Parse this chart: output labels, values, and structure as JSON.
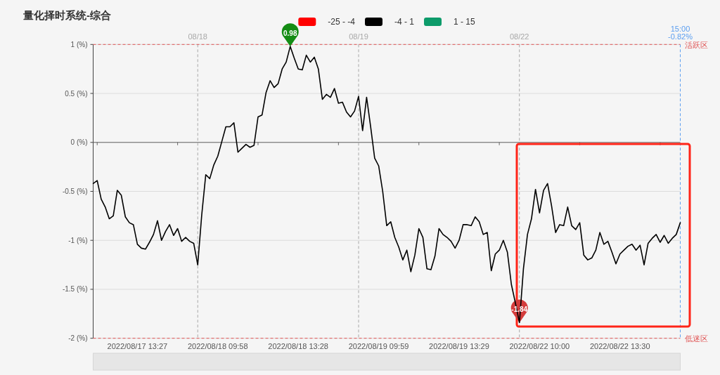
{
  "chart_data": {
    "type": "line",
    "title": "量化择时系统-综合",
    "categories": [
      null,
      null,
      null,
      null,
      null,
      null,
      null,
      null,
      null,
      null,
      null,
      "2022/08/17 13:27",
      null,
      null,
      null,
      null,
      null,
      null,
      null,
      null,
      null,
      null,
      null,
      null,
      null,
      null,
      null,
      null,
      null,
      null,
      null,
      "2022/08/18 09:58",
      null,
      null,
      null,
      null,
      null,
      null,
      null,
      null,
      null,
      null,
      null,
      null,
      null,
      null,
      null,
      null,
      null,
      null,
      null,
      "2022/08/18 13:28",
      null,
      null,
      null,
      null,
      null,
      null,
      null,
      null,
      null,
      null,
      null,
      null,
      null,
      null,
      null,
      null,
      null,
      null,
      null,
      "2022/08/19 09:59",
      null,
      null,
      null,
      null,
      null,
      null,
      null,
      null,
      null,
      null,
      null,
      null,
      null,
      null,
      null,
      null,
      null,
      null,
      null,
      "2022/08/19 13:29",
      null,
      null,
      null,
      null,
      null,
      null,
      null,
      null,
      null,
      null,
      null,
      null,
      null,
      null,
      null,
      null,
      null,
      null,
      null,
      "2022/08/22 10:00",
      null,
      null,
      null,
      null,
      null,
      null,
      null,
      null,
      null,
      null,
      null,
      null,
      null,
      null,
      null,
      null,
      null,
      null,
      null,
      "2022/08/22 13:30",
      null,
      null,
      null,
      null,
      null,
      null,
      null,
      null,
      null,
      null,
      null,
      null,
      null,
      null,
      null
    ],
    "ylim": [
      -2,
      1
    ],
    "yticks": [
      {
        "value": 1,
        "label": "1 (%)"
      },
      {
        "value": 0.5,
        "label": "0.5 (%)"
      },
      {
        "value": 0,
        "label": "0 (%)"
      },
      {
        "value": -0.5,
        "label": "-0.5 (%)"
      },
      {
        "value": -1,
        "label": "-1 (%)"
      },
      {
        "value": -1.5,
        "label": "-1.5 (%)"
      },
      {
        "value": -2,
        "label": "-2 (%)"
      }
    ],
    "grid": "y",
    "legend": "top",
    "series": [
      {
        "name": "-25 - -4",
        "color": "#ff0000",
        "values": [
          null,
          null,
          null,
          null,
          null,
          null,
          null,
          null,
          null,
          null,
          null,
          null,
          null,
          null,
          null,
          null,
          null,
          null,
          null,
          null,
          null,
          null,
          null,
          null,
          null,
          null,
          null,
          null,
          null,
          null,
          null,
          null,
          null,
          null,
          null,
          null,
          null,
          null,
          null,
          null,
          null,
          null,
          null,
          null,
          null,
          null,
          null,
          null,
          null,
          null,
          null,
          null,
          null,
          null,
          null,
          null,
          null,
          null,
          null,
          null,
          null,
          null,
          null,
          null,
          null,
          null,
          null,
          null,
          null,
          null,
          null,
          null,
          null,
          null,
          null,
          null,
          null,
          null,
          null,
          null,
          null,
          null,
          null,
          null,
          null,
          null,
          null,
          null,
          null,
          null,
          null,
          null,
          null,
          null,
          null,
          null,
          null,
          null,
          null,
          null,
          null,
          null,
          null,
          null,
          null,
          null,
          null,
          null,
          null,
          null,
          null,
          null,
          null,
          null,
          null,
          null,
          null,
          null,
          null,
          null,
          null,
          null,
          null,
          null,
          null,
          null,
          null,
          null,
          null,
          null,
          null,
          null,
          null,
          null,
          null,
          null,
          null,
          null,
          null,
          null,
          null,
          null,
          null,
          null,
          null,
          null,
          null
        ]
      },
      {
        "name": "-4 - 1",
        "color": "#000000",
        "values": [
          -0.42,
          -0.39,
          -0.58,
          -0.66,
          -0.78,
          -0.75,
          -0.49,
          -0.54,
          -0.76,
          -0.82,
          -0.84,
          -1.04,
          -1.08,
          -1.09,
          -1.02,
          -0.94,
          -0.8,
          -1.0,
          -0.91,
          -0.84,
          -0.95,
          -0.88,
          -1.01,
          -0.97,
          -1.01,
          -1.03,
          -1.25,
          -0.74,
          -0.33,
          -0.37,
          -0.23,
          -0.14,
          0.01,
          0.16,
          0.16,
          0.2,
          -0.1,
          -0.06,
          -0.02,
          -0.05,
          -0.03,
          0.26,
          0.28,
          0.51,
          0.63,
          0.56,
          0.6,
          0.75,
          0.82,
          0.98,
          0.86,
          0.75,
          0.74,
          0.89,
          0.82,
          0.87,
          0.75,
          0.44,
          0.49,
          0.46,
          0.55,
          0.4,
          0.41,
          0.31,
          0.26,
          0.32,
          0.47,
          0.12,
          0.46,
          0.16,
          -0.16,
          -0.24,
          -0.5,
          -0.85,
          -0.81,
          -0.97,
          -1.07,
          -1.2,
          -1.1,
          -1.32,
          -1.15,
          -0.88,
          -0.97,
          -1.29,
          -1.3,
          -1.16,
          -0.88,
          -0.94,
          -0.97,
          -1.01,
          -1.08,
          -1.0,
          -0.84,
          -0.84,
          -0.85,
          -0.76,
          -0.81,
          -0.94,
          -0.92,
          -1.31,
          -1.14,
          -1.1,
          -1.0,
          -1.12,
          -1.45,
          -1.64,
          -1.84,
          -1.29,
          -0.94,
          -0.78,
          -0.48,
          -0.72,
          -0.49,
          -0.42,
          -0.65,
          -0.92,
          -0.84,
          -0.85,
          -0.66,
          -0.85,
          -0.89,
          -0.82,
          -1.15,
          -1.2,
          -1.18,
          -1.1,
          -0.92,
          -1.04,
          -1.01,
          -1.12,
          -1.24,
          -1.14,
          -1.1,
          -1.06,
          -1.04,
          -1.1,
          -1.05,
          -1.25,
          -1.03,
          -0.98,
          -0.94,
          -1.02,
          -0.95,
          -1.03,
          -0.98,
          -0.94,
          -0.82
        ]
      },
      {
        "name": "1 - 15",
        "color": "#0d9b6a",
        "values": [
          null,
          null,
          null,
          null,
          null,
          null,
          null,
          null,
          null,
          null,
          null,
          null,
          null,
          null,
          null,
          null,
          null,
          null,
          null,
          null,
          null,
          null,
          null,
          null,
          null,
          null,
          null,
          null,
          null,
          null,
          null,
          null,
          null,
          null,
          null,
          null,
          null,
          null,
          null,
          null,
          null,
          null,
          null,
          null,
          null,
          null,
          null,
          null,
          null,
          null,
          null,
          null,
          null,
          null,
          null,
          null,
          null,
          null,
          null,
          null,
          null,
          null,
          null,
          null,
          null,
          null,
          null,
          null,
          null,
          null,
          null,
          null,
          null,
          null,
          null,
          null,
          null,
          null,
          null,
          null,
          null,
          null,
          null,
          null,
          null,
          null,
          null,
          null,
          null,
          null,
          null,
          null,
          null,
          null,
          null,
          null,
          null,
          null,
          null,
          null,
          null,
          null,
          null,
          null,
          null,
          null,
          null,
          null,
          null,
          null,
          null,
          null,
          null,
          null,
          null,
          null,
          null,
          null,
          null,
          null,
          null,
          null,
          null,
          null,
          null,
          null,
          null,
          null,
          null,
          null,
          null,
          null,
          null,
          null,
          null,
          null,
          null,
          null,
          null,
          null,
          null,
          null,
          null,
          null,
          null,
          null,
          null
        ]
      }
    ],
    "ref_lines": [
      {
        "axis": "y",
        "value": 1,
        "label": "活跃区",
        "color": "#e05555",
        "line_style": "dashed"
      },
      {
        "axis": "y",
        "value": -2,
        "label": "低迷区",
        "color": "#e05555",
        "line_style": "dashed"
      }
    ],
    "annotations": [
      {
        "text": "0.98",
        "y": 0.98
      },
      {
        "text": "-1.84",
        "y": -1.84
      },
      "08/18",
      "08/19",
      "08/22",
      "15:00\n-0.82%"
    ]
  }
}
